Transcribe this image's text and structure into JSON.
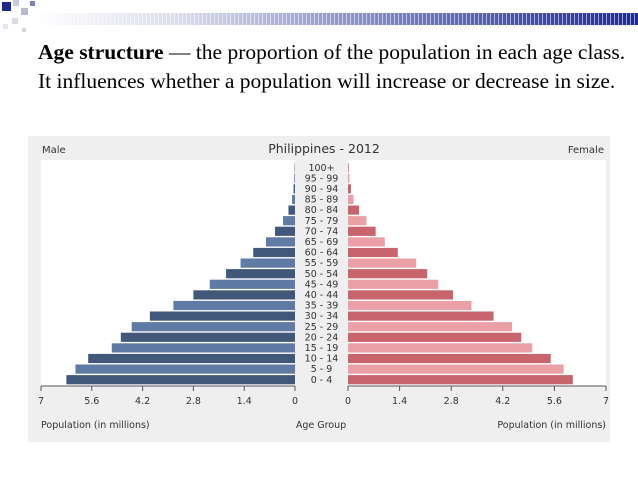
{
  "header": {
    "title_term": "Age structure",
    "title_rest": " — the proportion of the population in each age class. It influences whether a population will increase or decrease in size."
  },
  "chart_data": {
    "type": "bar",
    "title": "Philippines - 2012",
    "left_label": "Male",
    "right_label": "Female",
    "xlabel_left": "Population (in millions)",
    "xlabel_center": "Age Group",
    "xlabel_right": "Population (in millions)",
    "xlim": [
      0,
      7
    ],
    "ticks_left": [
      "7",
      "5.6",
      "4.2",
      "2.8",
      "1.4",
      "0"
    ],
    "ticks_right": [
      "0",
      "1.4",
      "2.8",
      "4.2",
      "5.6",
      "7"
    ],
    "tick_values": [
      0,
      1.4,
      2.8,
      4.2,
      5.6,
      7
    ],
    "categories": [
      "0 - 4",
      "5 - 9",
      "10 - 14",
      "15 - 19",
      "20 - 24",
      "25 - 29",
      "30 - 34",
      "35 - 39",
      "40 - 44",
      "45 - 49",
      "50 - 54",
      "55 - 59",
      "60 - 64",
      "65 - 69",
      "70 - 74",
      "75 - 79",
      "80 - 84",
      "85 - 89",
      "90 - 94",
      "95 - 99",
      "100+"
    ],
    "series": [
      {
        "name": "Male",
        "values": [
          6.3,
          6.05,
          5.7,
          5.05,
          4.8,
          4.5,
          4.0,
          3.35,
          2.8,
          2.35,
          1.9,
          1.5,
          1.15,
          0.8,
          0.55,
          0.33,
          0.18,
          0.08,
          0.04,
          0.02,
          0.01
        ],
        "colors": [
          "#41587b",
          "#5e7aa5"
        ]
      },
      {
        "name": "Female",
        "values": [
          6.1,
          5.85,
          5.5,
          5.0,
          4.7,
          4.45,
          3.95,
          3.35,
          2.85,
          2.45,
          2.15,
          1.85,
          1.35,
          1.0,
          0.75,
          0.5,
          0.3,
          0.15,
          0.08,
          0.04,
          0.02
        ],
        "colors": [
          "#c8646c",
          "#eaa0a6"
        ]
      }
    ],
    "grid": false
  }
}
